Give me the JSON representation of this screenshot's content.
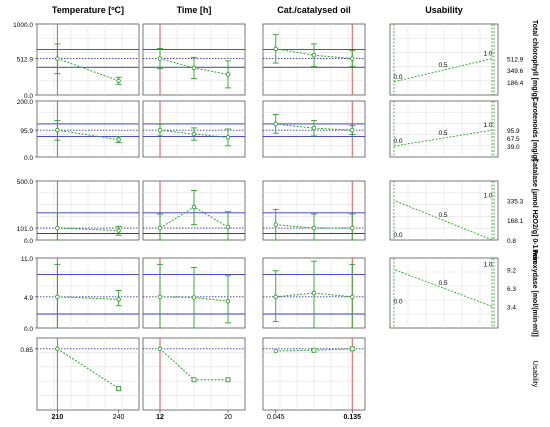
{
  "header": {
    "columns": [
      "Temperature [ºC]",
      "Time [h]",
      "Cat./catalysed oil",
      "Usability"
    ]
  },
  "x_axis": {
    "columns": [
      {
        "ticks": [
          {
            "label": "210",
            "bold": true
          },
          {
            "label": "240",
            "bold": false
          }
        ]
      },
      {
        "ticks": [
          {
            "label": "12",
            "bold": true
          },
          {
            "label": "20",
            "bold": false
          }
        ]
      },
      {
        "ticks": [
          {
            "label": "0.045",
            "bold": false
          },
          {
            "label": "0.135",
            "bold": true
          }
        ]
      }
    ]
  },
  "colors": {
    "series": "#2ca02c",
    "optimum_line": "#e05050",
    "ci_line": "#3333cc",
    "current_line": "#3333aa",
    "grid": "#e2e2e2"
  },
  "chart_data": [
    {
      "type": "line",
      "ylabel": "Total chlorophyll [mg/g]",
      "ylim": [
        0,
        1000
      ],
      "yticks": [
        "1000.0",
        "512.9",
        "0.0"
      ],
      "ytick_values": [
        1000,
        512.9,
        0
      ],
      "current": 512.9,
      "ci": [
        390,
        640
      ],
      "factors": [
        {
          "x": [
            210,
            240
          ],
          "y": [
            512.9,
            200
          ],
          "err": [
            [
              300,
              720
            ],
            [
              150,
              250
            ]
          ],
          "optimum_x": 210
        },
        {
          "x": [
            12,
            16,
            20
          ],
          "y": [
            512.9,
            380,
            290
          ],
          "err": [
            [
              370,
              655
            ],
            [
              230,
              530
            ],
            [
              100,
              480
            ]
          ],
          "optimum_x": 12
        },
        {
          "x": [
            0.045,
            0.09,
            0.135
          ],
          "y": [
            650,
            560,
            512.9
          ],
          "err": [
            [
              450,
              850
            ],
            [
              400,
              720
            ],
            [
              400,
              625
            ]
          ],
          "optimum_x": 0.135
        }
      ],
      "usability": {
        "ticks": [
          "512.9",
          "349.6",
          "186.4"
        ],
        "tick_values": [
          512.9,
          349.6,
          186.4
        ],
        "labels": [
          "0.0",
          "0.5",
          "1.0"
        ],
        "label_values": [
          0,
          0.5,
          1
        ],
        "desirability_x": [
          186.4,
          512.9
        ],
        "desirability_y": [
          0,
          1
        ]
      }
    },
    {
      "type": "line",
      "ylabel": "Carotenoids [mg/g]",
      "ylim": [
        0,
        200
      ],
      "yticks": [
        "200.0",
        "95.9",
        "0.0"
      ],
      "ytick_values": [
        200,
        95.9,
        0
      ],
      "current": 95.9,
      "ci": [
        73,
        118
      ],
      "factors": [
        {
          "x": [
            210,
            240
          ],
          "y": [
            95.9,
            62
          ],
          "err": [
            [
              60,
              130
            ],
            [
              52,
              72
            ]
          ],
          "optimum_x": 210
        },
        {
          "x": [
            12,
            16,
            20
          ],
          "y": [
            95.9,
            82,
            70
          ],
          "err": [
            [
              75,
              117
            ],
            [
              60,
              104
            ],
            [
              40,
              100
            ]
          ],
          "optimum_x": 12
        },
        {
          "x": [
            0.045,
            0.09,
            0.135
          ],
          "y": [
            118,
            103,
            95.9
          ],
          "err": [
            [
              85,
              152
            ],
            [
              75,
              130
            ],
            [
              80,
              112
            ]
          ],
          "optimum_x": 0.135
        }
      ],
      "usability": {
        "ticks": [
          "95.9",
          "67.5",
          "39.0"
        ],
        "tick_values": [
          95.9,
          67.5,
          39
        ],
        "labels": [
          "0.0",
          "0.5",
          "1.0"
        ],
        "label_values": [
          0,
          0.5,
          1
        ],
        "desirability_x": [
          39,
          95.9
        ],
        "desirability_y": [
          0,
          1
        ]
      }
    },
    {
      "type": "line",
      "ylabel": "Catalase [µmol H2O2/g] 0-1 min",
      "ylim": [
        0,
        500
      ],
      "yticks": [
        "500.0",
        "101.0",
        "0.0"
      ],
      "ytick_values": [
        500,
        101,
        0
      ],
      "current": 101,
      "ci": [
        55,
        230
      ],
      "factors": [
        {
          "x": [
            210,
            240
          ],
          "y": [
            101,
            80
          ],
          "err": [
            [
              0,
              230
            ],
            [
              40,
              115
            ]
          ],
          "optimum_x": 210
        },
        {
          "x": [
            12,
            16,
            20
          ],
          "y": [
            101,
            280,
            110
          ],
          "err": [
            [
              0,
              220
            ],
            [
              130,
              420
            ],
            [
              0,
              240
            ]
          ],
          "optimum_x": 12
        },
        {
          "x": [
            0.045,
            0.09,
            0.135
          ],
          "y": [
            130,
            101,
            101
          ],
          "err": [
            [
              0,
              260
            ],
            [
              0,
              220
            ],
            [
              0,
              220
            ]
          ],
          "optimum_x": 0.135
        }
      ],
      "usability": {
        "ticks": [
          "335.3",
          "168.1",
          "0.8"
        ],
        "tick_values": [
          335.3,
          168.1,
          0.8
        ],
        "labels": [
          "0.0",
          "0.5",
          "1.0"
        ],
        "label_values": [
          0,
          0.5,
          1
        ],
        "desirability_x": [
          0.8,
          335.3
        ],
        "desirability_y": [
          1,
          0
        ]
      }
    },
    {
      "type": "line",
      "ylabel": "Peroxydase [mol/(min∙ml)]",
      "ylim": [
        0,
        11
      ],
      "yticks": [
        "11.0",
        "4.9",
        "0.0"
      ],
      "ytick_values": [
        11,
        4.9,
        0
      ],
      "current": 4.9,
      "ci": [
        2.2,
        8.4
      ],
      "factors": [
        {
          "x": [
            210,
            240
          ],
          "y": [
            4.9,
            4.5
          ],
          "err": [
            [
              0,
              10
            ],
            [
              3.5,
              5.9
            ]
          ],
          "optimum_x": 210
        },
        {
          "x": [
            12,
            16,
            20
          ],
          "y": [
            4.9,
            4.8,
            4.2
          ],
          "err": [
            [
              0,
              10
            ],
            [
              0,
              9.5
            ],
            [
              0.8,
              8.2
            ]
          ],
          "optimum_x": 12
        },
        {
          "x": [
            0.045,
            0.09,
            0.135
          ],
          "y": [
            4.9,
            5.5,
            4.9
          ],
          "err": [
            [
              1,
              9
            ],
            [
              0,
              10.5
            ],
            [
              0,
              10
            ]
          ],
          "optimum_x": 0.135
        }
      ],
      "usability": {
        "ticks": [
          "9.2",
          "6.3",
          "3.4"
        ],
        "tick_values": [
          9.2,
          6.3,
          3.4
        ],
        "labels": [
          "0.0",
          "0.5",
          "1.0"
        ],
        "label_values": [
          0,
          0.5,
          1
        ],
        "desirability_x": [
          3.4,
          9.2
        ],
        "desirability_y": [
          1,
          0
        ]
      }
    },
    {
      "type": "line",
      "ylabel": "Usability",
      "ylim": [
        0,
        1
      ],
      "yticks": [
        "0.85"
      ],
      "ytick_values": [
        0.85
      ],
      "current": 0.85,
      "factors": [
        {
          "x": [
            210,
            240
          ],
          "y": [
            0.85,
            0.3
          ],
          "optimum_x": 210
        },
        {
          "x": [
            12,
            16,
            20
          ],
          "y": [
            0.85,
            0.42,
            0.42
          ],
          "optimum_x": 12
        },
        {
          "x": [
            0.045,
            0.09,
            0.135
          ],
          "y": [
            0.82,
            0.83,
            0.85
          ],
          "optimum_x": 0.135
        }
      ]
    }
  ]
}
